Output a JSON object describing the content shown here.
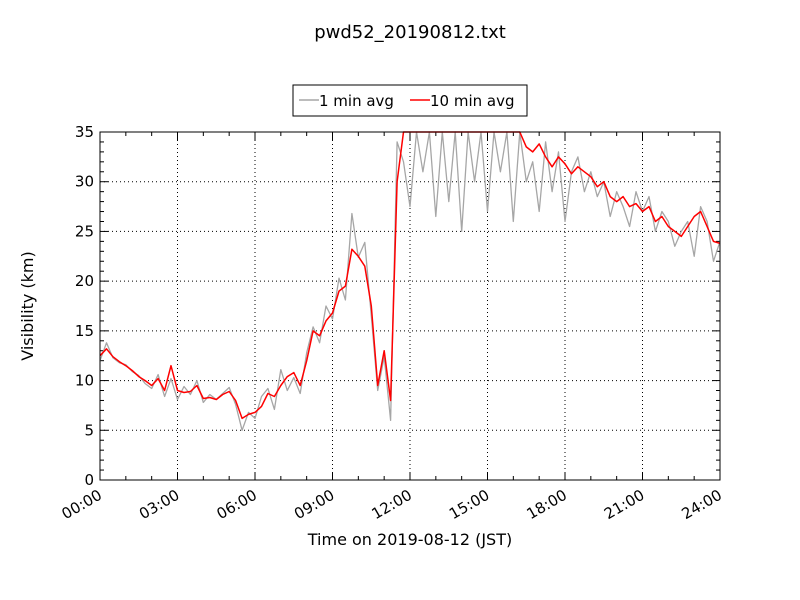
{
  "chart_data": {
    "type": "line",
    "title": "pwd52_20190812.txt",
    "xlabel": "Time on 2019-08-12 (JST)",
    "ylabel": "Visibility (km)",
    "xlim": [
      "00:00",
      "24:00"
    ],
    "ylim": [
      0,
      35
    ],
    "x_ticks": [
      "00:00",
      "03:00",
      "06:00",
      "09:00",
      "12:00",
      "15:00",
      "18:00",
      "21:00",
      "24:00"
    ],
    "y_ticks": [
      "0",
      "5",
      "10",
      "15",
      "20",
      "25",
      "30",
      "35"
    ],
    "grid": true,
    "legend_position": "top-center",
    "series": [
      {
        "name": "1 min avg",
        "color": "#a6a6a6",
        "x": [
          "00:00",
          "00:15",
          "00:30",
          "00:45",
          "01:00",
          "01:15",
          "01:30",
          "01:45",
          "02:00",
          "02:15",
          "02:30",
          "02:45",
          "03:00",
          "03:15",
          "03:30",
          "03:45",
          "04:00",
          "04:15",
          "04:30",
          "04:45",
          "05:00",
          "05:15",
          "05:30",
          "05:45",
          "06:00",
          "06:15",
          "06:30",
          "06:45",
          "07:00",
          "07:15",
          "07:30",
          "07:45",
          "08:00",
          "08:15",
          "08:30",
          "08:45",
          "09:00",
          "09:15",
          "09:30",
          "09:45",
          "10:00",
          "10:15",
          "10:30",
          "10:45",
          "11:00",
          "11:15",
          "11:30",
          "11:45",
          "12:00",
          "12:15",
          "12:30",
          "12:45",
          "13:00",
          "13:15",
          "13:30",
          "13:45",
          "14:00",
          "14:15",
          "14:30",
          "14:45",
          "15:00",
          "15:15",
          "15:30",
          "15:45",
          "16:00",
          "16:15",
          "16:30",
          "16:45",
          "17:00",
          "17:15",
          "17:30",
          "17:45",
          "18:00",
          "18:15",
          "18:30",
          "18:45",
          "19:00",
          "19:15",
          "19:30",
          "19:45",
          "20:00",
          "20:15",
          "20:30",
          "20:45",
          "21:00",
          "21:15",
          "21:30",
          "21:45",
          "22:00",
          "22:15",
          "22:30",
          "22:45",
          "23:00",
          "23:15",
          "23:30",
          "23:45",
          "24:00"
        ],
        "values": [
          12.0,
          13.8,
          12.3,
          11.8,
          11.6,
          10.9,
          10.5,
          9.7,
          9.2,
          10.6,
          8.4,
          10.2,
          8.1,
          9.4,
          8.6,
          10.0,
          7.8,
          8.6,
          8.1,
          8.7,
          9.3,
          7.6,
          5.0,
          6.8,
          6.2,
          8.4,
          9.2,
          7.1,
          11.1,
          9.0,
          10.3,
          8.7,
          12.8,
          15.4,
          13.8,
          17.5,
          16.2,
          20.3,
          18.1,
          26.8,
          22.4,
          23.9,
          16.5,
          9.0,
          12.4,
          6.0,
          34.0,
          32.0,
          27.5,
          35.0,
          31.0,
          35.0,
          26.5,
          35.0,
          28.0,
          35.0,
          25.0,
          35.0,
          30.0,
          35.0,
          27.0,
          35.0,
          31.0,
          35.0,
          26.0,
          35.0,
          30.0,
          32.0,
          27.0,
          34.0,
          29.0,
          33.0,
          26.0,
          31.0,
          32.5,
          29.0,
          31.0,
          28.5,
          30.0,
          26.5,
          29.0,
          27.5,
          25.5,
          29.0,
          27.0,
          28.5,
          25.0,
          27.0,
          26.0,
          23.5,
          25.0,
          26.0,
          22.5,
          27.5,
          26.0,
          22.0,
          24.0
        ]
      },
      {
        "name": "10 min avg",
        "color": "#ff0000",
        "x": [
          "00:00",
          "00:15",
          "00:30",
          "00:45",
          "01:00",
          "01:15",
          "01:30",
          "01:45",
          "02:00",
          "02:15",
          "02:30",
          "02:45",
          "03:00",
          "03:15",
          "03:30",
          "03:45",
          "04:00",
          "04:15",
          "04:30",
          "04:45",
          "05:00",
          "05:15",
          "05:30",
          "05:45",
          "06:00",
          "06:15",
          "06:30",
          "06:45",
          "07:00",
          "07:15",
          "07:30",
          "07:45",
          "08:00",
          "08:15",
          "08:30",
          "08:45",
          "09:00",
          "09:15",
          "09:30",
          "09:45",
          "10:00",
          "10:15",
          "10:30",
          "10:45",
          "11:00",
          "11:15",
          "11:30",
          "11:45",
          "12:00",
          "12:15",
          "12:30",
          "12:45",
          "13:00",
          "13:15",
          "13:30",
          "13:45",
          "14:00",
          "14:15",
          "14:30",
          "14:45",
          "15:00",
          "15:15",
          "15:30",
          "15:45",
          "16:00",
          "16:15",
          "16:30",
          "16:45",
          "17:00",
          "17:15",
          "17:30",
          "17:45",
          "18:00",
          "18:15",
          "18:30",
          "18:45",
          "19:00",
          "19:15",
          "19:30",
          "19:45",
          "20:00",
          "20:15",
          "20:30",
          "20:45",
          "21:00",
          "21:15",
          "21:30",
          "21:45",
          "22:00",
          "22:15",
          "22:30",
          "22:45",
          "23:00",
          "23:15",
          "23:30",
          "23:45",
          "24:00"
        ],
        "values": [
          12.5,
          13.2,
          12.4,
          11.9,
          11.5,
          11.0,
          10.4,
          10.0,
          9.5,
          10.2,
          9.0,
          11.5,
          9.0,
          8.8,
          8.9,
          9.5,
          8.2,
          8.3,
          8.1,
          8.6,
          8.9,
          8.0,
          6.2,
          6.6,
          6.8,
          7.4,
          8.7,
          8.4,
          9.5,
          10.4,
          10.8,
          9.5,
          12.0,
          15.0,
          14.5,
          16.0,
          16.8,
          19.0,
          19.5,
          23.2,
          22.5,
          21.5,
          17.5,
          9.5,
          13.0,
          8.0,
          30.0,
          35.0,
          35.0,
          35.0,
          35.0,
          35.0,
          35.0,
          35.0,
          35.0,
          35.0,
          35.0,
          35.0,
          35.0,
          35.0,
          35.0,
          35.0,
          35.0,
          35.0,
          35.0,
          35.0,
          33.5,
          33.0,
          33.8,
          32.5,
          31.5,
          32.5,
          31.8,
          30.8,
          31.5,
          31.0,
          30.5,
          29.5,
          30.0,
          28.5,
          28.0,
          28.5,
          27.5,
          27.8,
          27.0,
          27.5,
          26.0,
          26.5,
          25.5,
          25.0,
          24.5,
          25.5,
          26.5,
          27.0,
          25.5,
          24.0,
          23.8
        ]
      }
    ]
  }
}
